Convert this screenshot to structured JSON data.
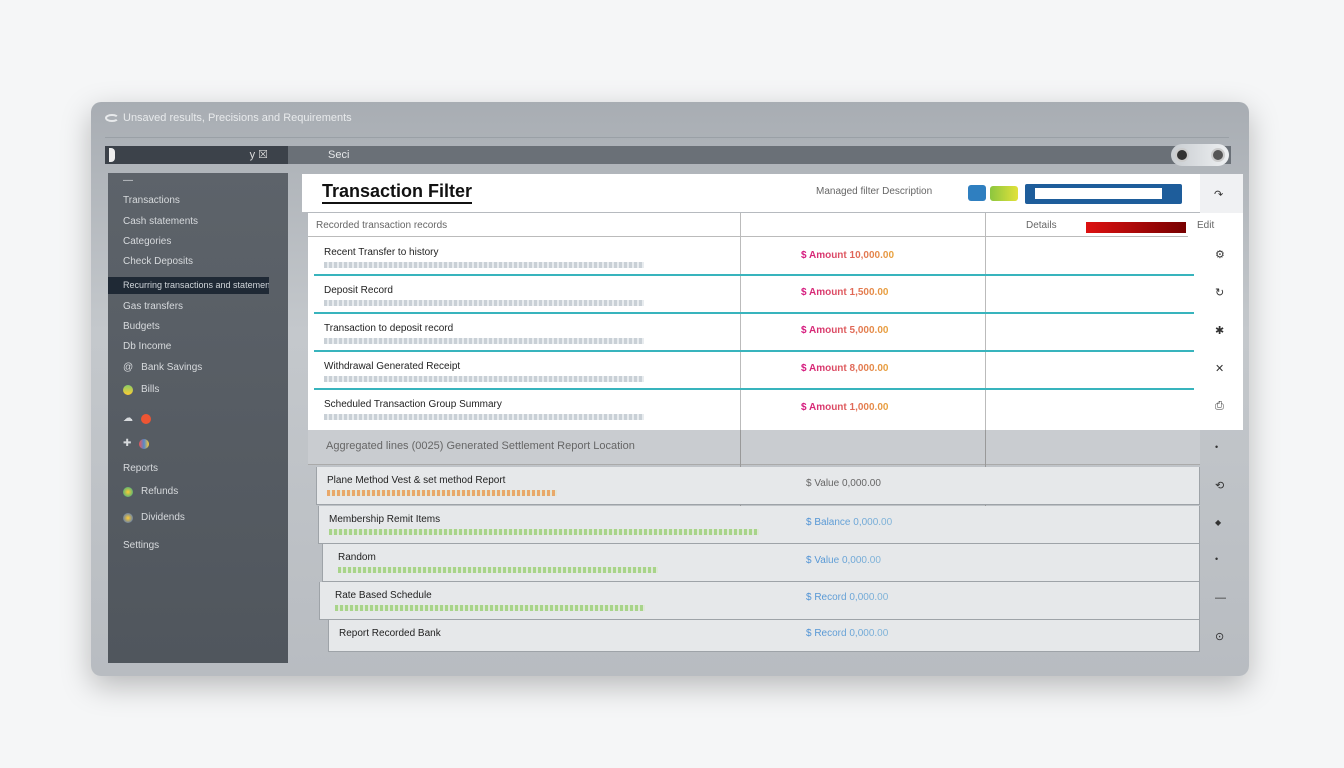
{
  "window": {
    "title": "Unsaved results, Precisions and Requirements"
  },
  "toolbar": {
    "icons": "y ☒",
    "search": "Seci"
  },
  "sidebar": {
    "items": [
      {
        "label": "—"
      },
      {
        "label": "Transactions"
      },
      {
        "label": "Cash statements"
      },
      {
        "label": "Categories"
      },
      {
        "label": "Check Deposits"
      },
      {
        "label": "Recurring transactions and statements"
      },
      {
        "label": "Gas transfers"
      },
      {
        "label": "Budgets"
      },
      {
        "label": "Db Income"
      },
      {
        "label": "Bank Savings"
      },
      {
        "label": "Bills"
      },
      {
        "label": ""
      },
      {
        "label": ""
      },
      {
        "label": "Reports"
      },
      {
        "label": "Refunds"
      },
      {
        "label": "Dividends"
      },
      {
        "label": "Settings"
      }
    ]
  },
  "main": {
    "title": "Transaction Filter",
    "header_right": "Managed filter Description",
    "column_header": "Recorded transaction records",
    "amount_header": "Details",
    "action_header": "Edit",
    "rows": [
      {
        "title": "Recent Transfer to history",
        "amount": "$ Amount 10,000.00",
        "action": "⚙"
      },
      {
        "title": "Deposit Record",
        "amount": "$ Amount 1,500.00",
        "action": "↻"
      },
      {
        "title": "Transaction to deposit record",
        "amount": "$ Amount 5,000.00",
        "action": "✱"
      },
      {
        "title": "Withdrawal Generated Receipt",
        "amount": "$ Amount 8,000.00",
        "action": "✕"
      },
      {
        "title": "Scheduled Transaction Group Summary",
        "amount": "$ Amount 1,000.00",
        "action": "⎙"
      }
    ],
    "group_header": "Aggregated lines (0025) Generated Settlement Report Location",
    "lower_rows": [
      {
        "title": "Plane Method Vest & set method Report",
        "amount": "$ Value 0,000.00",
        "action": "•"
      },
      {
        "title": "Membership Remit Items",
        "amount": "$ Balance 0,000.00",
        "action": "⟲"
      },
      {
        "title": "Random",
        "amount": "$ Value 0,000.00",
        "action": "◆"
      },
      {
        "title": "Rate Based Schedule",
        "amount": "$ Record 0,000.00",
        "action": "•"
      },
      {
        "title": "Report Recorded Bank",
        "amount": "$ Record 0,000.00",
        "action": "—"
      }
    ],
    "lower_last_action": "⊙"
  },
  "colors": {
    "accent": "#1e5d9b",
    "divider": "#38b4bd",
    "amount": "#d4147f",
    "sidebar": "#5b6168",
    "active": "#1f2935"
  }
}
